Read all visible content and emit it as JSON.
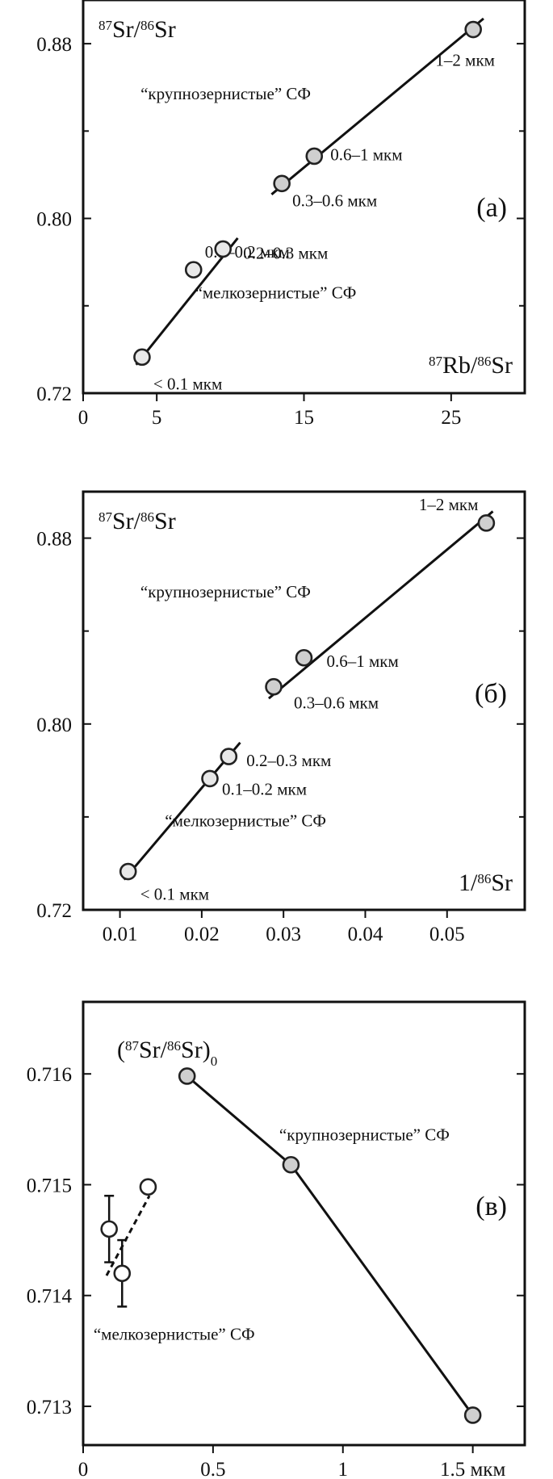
{
  "chart_data": [
    {
      "id": "a",
      "type": "scatter",
      "panel_label": "(a)",
      "y_title": {
        "pre": "",
        "a": "87",
        "b": "Sr/",
        "c": "86",
        "d": "Sr",
        "post": ""
      },
      "x_title": {
        "pre": "",
        "a": "87",
        "b": "Rb/",
        "c": "86",
        "d": "Sr",
        "post": ""
      },
      "x_ticks": [
        0,
        5,
        15,
        25
      ],
      "x_tick_labels": [
        "0",
        "5",
        "15",
        "25"
      ],
      "y_ticks": [
        0.72,
        0.8,
        0.88
      ],
      "y_tick_labels": [
        "0.72",
        "0.80",
        "0.88"
      ],
      "xlim": [
        0,
        30
      ],
      "ylim": [
        0.72,
        0.9
      ],
      "grid": false,
      "points": [
        {
          "label": "< 0.1 мкм",
          "x": 4,
          "y": 0.7365,
          "fill": "#e8e8e8"
        },
        {
          "label": "0.1–0.2 мкм",
          "x": 7.5,
          "y": 0.7765,
          "fill": "#e8e8e8"
        },
        {
          "label": "0.2–0.3 мкм",
          "x": 9.5,
          "y": 0.786,
          "fill": "#e8e8e8"
        },
        {
          "label": "0.3–0.6 мкм",
          "x": 13.5,
          "y": 0.816,
          "fill": "#cfcfcf"
        },
        {
          "label": "0.6–1 мкм",
          "x": 15.7,
          "y": 0.8285,
          "fill": "#cfcfcf"
        },
        {
          "label": "1–2 мкм",
          "x": 26.5,
          "y": 0.8865,
          "fill": "#cfcfcf"
        }
      ],
      "lines": [
        {
          "x": [
            3.6,
            10.5
          ],
          "y": [
            0.733,
            0.791
          ],
          "dash": false
        },
        {
          "x": [
            12.8,
            27.2
          ],
          "y": [
            0.811,
            0.8915
          ],
          "dash": false
        }
      ],
      "annotations": [
        {
          "text": "“крупнозернистые” СФ",
          "x": 3.9,
          "y": 0.8545
        },
        {
          "text": "“мелкозернистые” СФ",
          "x": 7.6,
          "y": 0.7635
        }
      ]
    },
    {
      "id": "b",
      "type": "scatter",
      "panel_label": "(б)",
      "y_title": {
        "pre": "",
        "a": "87",
        "b": "Sr/",
        "c": "86",
        "d": "Sr",
        "post": ""
      },
      "x_title": {
        "pre": "1/",
        "a": "",
        "b": "",
        "c": "86",
        "d": "Sr",
        "post": ""
      },
      "x_ticks": [
        0.01,
        0.02,
        0.03,
        0.04,
        0.05
      ],
      "x_tick_labels": [
        "0.01",
        "0.02",
        "0.03",
        "0.04",
        "0.05"
      ],
      "y_ticks": [
        0.72,
        0.8,
        0.88
      ],
      "y_tick_labels": [
        "0.72",
        "0.80",
        "0.88"
      ],
      "xlim": [
        0.0055,
        0.0595
      ],
      "ylim": [
        0.72,
        0.9
      ],
      "grid": false,
      "points": [
        {
          "label": "< 0.1 мкм",
          "x": 0.011,
          "y": 0.7365,
          "fill": "#e8e8e8"
        },
        {
          "label": "0.1–0.2 мкм",
          "x": 0.021,
          "y": 0.7765,
          "fill": "#e8e8e8"
        },
        {
          "label": "0.2–0.3 мкм",
          "x": 0.0233,
          "y": 0.786,
          "fill": "#e8e8e8"
        },
        {
          "label": "0.3–0.6 мкм",
          "x": 0.0288,
          "y": 0.816,
          "fill": "#cfcfcf"
        },
        {
          "label": "0.6–1 мкм",
          "x": 0.0325,
          "y": 0.8285,
          "fill": "#cfcfcf"
        },
        {
          "label": "1–2 мкм",
          "x": 0.0548,
          "y": 0.8865,
          "fill": "#cfcfcf"
        }
      ],
      "lines": [
        {
          "x": [
            0.0105,
            0.0247
          ],
          "y": [
            0.733,
            0.792
          ],
          "dash": false
        },
        {
          "x": [
            0.0282,
            0.0556
          ],
          "y": [
            0.811,
            0.8915
          ],
          "dash": false
        }
      ],
      "annotations": [
        {
          "text": "“крупнозернистые” СФ",
          "x": 0.0125,
          "y": 0.8545
        },
        {
          "text": "“мелкозернистые” СФ",
          "x": 0.0155,
          "y": 0.756
        }
      ]
    },
    {
      "id": "v",
      "type": "line",
      "panel_label": "(в)",
      "y_title": {
        "pre": "(",
        "a": "87",
        "b": "Sr/",
        "c": "86",
        "d": "Sr)",
        "post": "0"
      },
      "x_title": {
        "pre": "",
        "a": "",
        "b": "",
        "c": "",
        "d": "",
        "post": ""
      },
      "x_ticks": [
        0,
        0.5,
        1,
        1.5
      ],
      "x_tick_labels": [
        "0",
        "0.5",
        "1",
        "1.5 мкм"
      ],
      "y_ticks": [
        0.713,
        0.714,
        0.715,
        0.716
      ],
      "y_tick_labels": [
        "0.713",
        "0.714",
        "0.715",
        "0.716"
      ],
      "xlim": [
        0,
        1.7
      ],
      "ylim": [
        0.71265,
        0.71665
      ],
      "grid": false,
      "points": [
        {
          "label": "",
          "x": 0.1,
          "y": 0.7146,
          "fill": "#ffffff",
          "err": 0.0003
        },
        {
          "label": "",
          "x": 0.15,
          "y": 0.7142,
          "fill": "#ffffff",
          "err": 0.0003
        },
        {
          "label": "",
          "x": 0.25,
          "y": 0.71498,
          "fill": "#ffffff"
        },
        {
          "label": "",
          "x": 0.4,
          "y": 0.71598,
          "fill": "#cfcfcf"
        },
        {
          "label": "",
          "x": 0.8,
          "y": 0.71518,
          "fill": "#cfcfcf"
        },
        {
          "label": "",
          "x": 1.5,
          "y": 0.71292,
          "fill": "#cfcfcf"
        }
      ],
      "lines": [
        {
          "x": [
            0.4,
            0.8,
            1.5
          ],
          "y": [
            0.71598,
            0.71518,
            0.71292
          ],
          "dash": false
        },
        {
          "x": [
            0.09,
            0.255
          ],
          "y": [
            0.71418,
            0.7149
          ],
          "dash": true
        }
      ],
      "annotations": [
        {
          "text": "“крупнозернистые” СФ",
          "x": 0.755,
          "y": 0.7154
        },
        {
          "text": "“мелкозернистые” СФ",
          "x": 0.04,
          "y": 0.7136
        }
      ]
    }
  ]
}
